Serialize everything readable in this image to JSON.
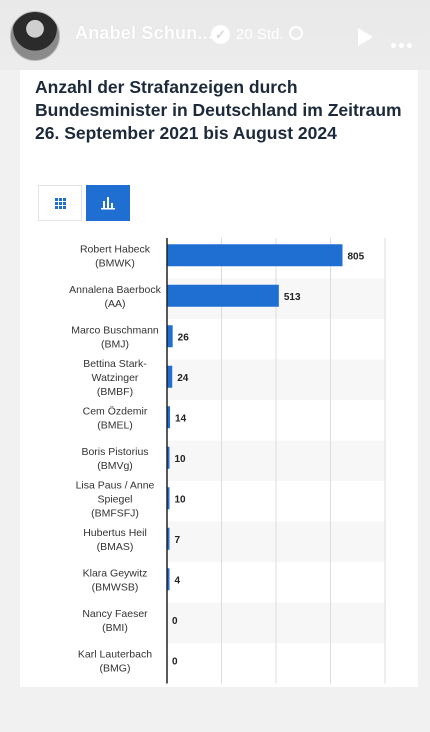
{
  "header": {
    "author": "Anabel Schun...",
    "time": "20 Std."
  },
  "card": {
    "title": "Anzahl der Strafanzeigen durch Bundesminister in Deutschland im Zeitraum 26. September 2021 bis August 2024"
  },
  "colors": {
    "bar": "#1f6fd2",
    "toggle_active": "#1f6fd2",
    "title": "#1c2a3b"
  },
  "icons": {
    "verified": "check-badge",
    "visibility": "globe",
    "play": "play-triangle",
    "more": "three-dots",
    "table_view": "grid",
    "chart_view": "bar-chart"
  },
  "chart_data": {
    "type": "bar",
    "orientation": "horizontal",
    "title": "Anzahl der Strafanzeigen durch Bundesminister in Deutschland im Zeitraum 26. September 2021 bis August 2024",
    "categories": [
      [
        "Robert Habeck",
        "(BMWK)"
      ],
      [
        "Annalena Baerbock",
        "(AA)"
      ],
      [
        "Marco Buschmann",
        "(BMJ)"
      ],
      [
        "Bettina Stark-",
        "Watzinger",
        "(BMBF)"
      ],
      [
        "Cem Özdemir",
        "(BMEL)"
      ],
      [
        "Boris Pistorius",
        "(BMVg)"
      ],
      [
        "Lisa Paus / Anne",
        "Spiegel",
        "(BMFSFJ)"
      ],
      [
        "Hubertus Heil",
        "(BMAS)"
      ],
      [
        "Klara Geywitz",
        "(BMWSB)"
      ],
      [
        "Nancy Faeser",
        "(BMI)"
      ],
      [
        "Karl Lauterbach",
        "(BMG)"
      ]
    ],
    "values": [
      805,
      513,
      26,
      24,
      14,
      10,
      10,
      7,
      4,
      0,
      0
    ],
    "xlim": [
      0,
      1000
    ],
    "grid": true,
    "data_labels": true
  }
}
